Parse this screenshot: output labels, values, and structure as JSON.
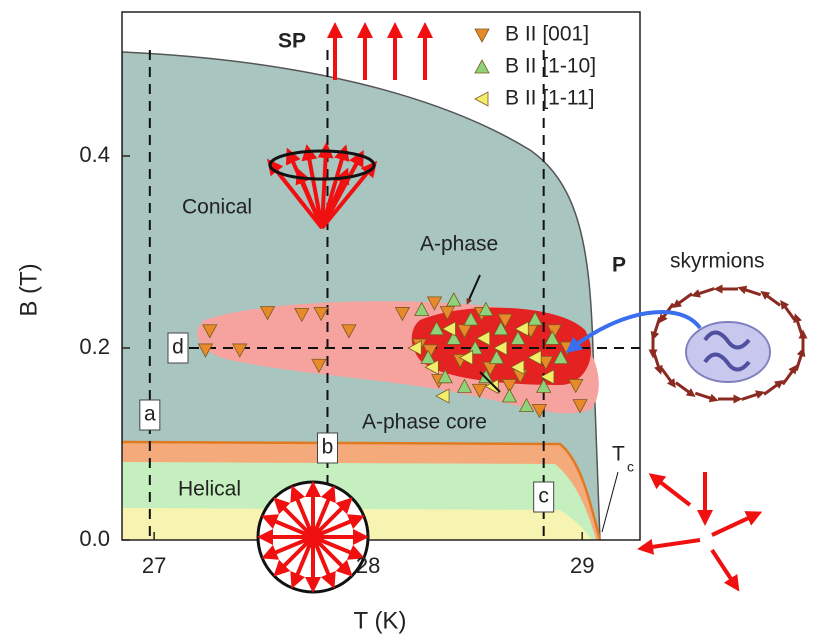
{
  "chart_data": {
    "type": "scatter",
    "x_label": "T (K)",
    "y_label": "B (T)",
    "xlim": [
      26.85,
      29.27
    ],
    "ylim": [
      0,
      0.55
    ],
    "xticks": [
      27,
      28,
      29
    ],
    "yticks": [
      {
        "value": 0,
        "label": "0.0"
      },
      0.2,
      0.4
    ],
    "series": [
      {
        "name": "B II [001]",
        "color": "#e8892a",
        "marker": "v",
        "x": [
          27.26,
          27.24,
          27.4,
          27.53,
          27.69,
          27.78,
          27.77,
          27.91,
          28.16,
          28.31,
          28.37,
          28.53,
          28.64,
          28.76,
          28.87,
          28.93,
          28.83,
          28.97,
          28.99,
          28.8,
          28.71,
          28.57,
          28.43,
          28.29,
          28.33,
          28.52,
          28.66,
          28.45,
          28.24
        ],
        "values": [
          0.218,
          0.198,
          0.198,
          0.237,
          0.235,
          0.236,
          0.182,
          0.218,
          0.236,
          0.247,
          0.237,
          0.236,
          0.229,
          0.218,
          0.218,
          0.2,
          0.185,
          0.161,
          0.14,
          0.135,
          0.171,
          0.179,
          0.187,
          0.197,
          0.166,
          0.156,
          0.161,
          0.218,
          0.203
        ]
      },
      {
        "name": "B II [1-10]",
        "color": "#8ed37a",
        "marker": "^",
        "x": [
          28.25,
          28.32,
          28.4,
          28.48,
          28.55,
          28.62,
          28.7,
          28.78,
          28.86,
          28.9,
          28.28,
          28.36,
          28.45,
          28.55,
          28.66,
          28.74,
          28.82,
          28.5,
          28.6,
          28.4
        ],
        "values": [
          0.24,
          0.22,
          0.25,
          0.23,
          0.24,
          0.22,
          0.21,
          0.23,
          0.21,
          0.19,
          0.19,
          0.17,
          0.16,
          0.17,
          0.15,
          0.14,
          0.16,
          0.2,
          0.19,
          0.21
        ]
      },
      {
        "name": "B II [1-11]",
        "color": "#f2ee6a",
        "marker": "<",
        "x": [
          28.22,
          28.3,
          28.38,
          28.46,
          28.54,
          28.62,
          28.7,
          28.78,
          28.84,
          28.35,
          28.58,
          28.72
        ],
        "values": [
          0.2,
          0.18,
          0.22,
          0.19,
          0.21,
          0.2,
          0.18,
          0.19,
          0.17,
          0.15,
          0.16,
          0.22
        ]
      }
    ],
    "reference_lines": [
      {
        "label": "a",
        "x": 26.98
      },
      {
        "label": "b",
        "x": 27.81
      },
      {
        "label": "c",
        "x": 28.82
      },
      {
        "label": "d",
        "y": 0.2
      }
    ],
    "annotations": [
      "SP",
      "P",
      "Conical",
      "Helical",
      "A-phase",
      "A-phase core",
      "skyrmions",
      "T",
      "c"
    ]
  }
}
